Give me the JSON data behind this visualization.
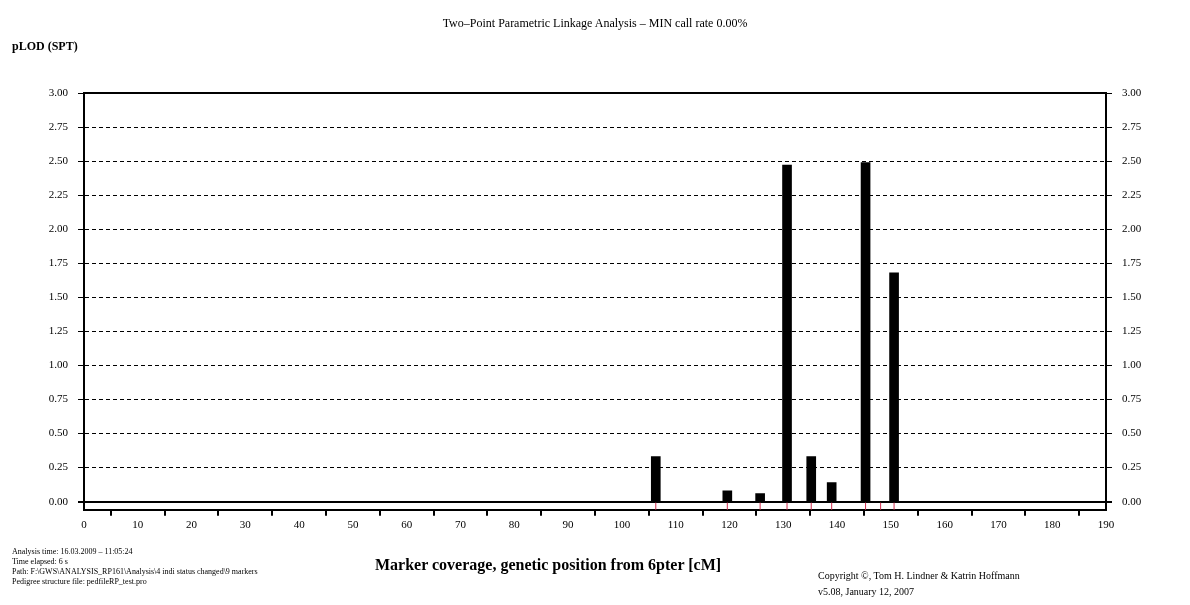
{
  "chart_data": {
    "type": "bar",
    "title": "Two–Point Parametric Linkage Analysis – MIN call rate 0.00%",
    "ylabel": "pLOD (SPT)",
    "xlabel": "Marker coverage, genetic position from 6pter [cM]",
    "x": [
      106.3,
      119.6,
      125.7,
      130.7,
      135.2,
      139.0,
      145.3,
      148.1,
      150.6
    ],
    "series": [
      {
        "color": "#000000",
        "values": [
          0.33,
          0.08,
          0.06,
          2.47,
          0.33,
          0.14,
          2.49,
          0,
          1.68
        ]
      }
    ],
    "xlim": [
      0,
      190
    ],
    "xticks": [
      0,
      10,
      20,
      30,
      40,
      50,
      60,
      70,
      80,
      90,
      100,
      110,
      120,
      130,
      140,
      150,
      160,
      170,
      180,
      190
    ],
    "ylim": [
      -0.06,
      3
    ],
    "yticks": [
      {
        "value": 0,
        "label": "0.00"
      },
      {
        "value": 0.25,
        "label": "0.25"
      },
      {
        "value": 0.5,
        "label": "0.50"
      },
      {
        "value": 0.75,
        "label": "0.75"
      },
      {
        "value": 1,
        "label": "1.00"
      },
      {
        "value": 1.25,
        "label": "1.25"
      },
      {
        "value": 1.5,
        "label": "1.50"
      },
      {
        "value": 1.75,
        "label": "1.75"
      },
      {
        "value": 2,
        "label": "2.00"
      },
      {
        "value": 2.25,
        "label": "2.25"
      },
      {
        "value": 2.5,
        "label": "2.50"
      },
      {
        "value": 2.75,
        "label": "2.75"
      },
      {
        "value": 3,
        "label": "3.00"
      }
    ],
    "y2lim": [
      -0.06,
      3
    ],
    "y2ticks": [
      {
        "value": 0,
        "label": "0.00"
      },
      {
        "value": 0.25,
        "label": "0.25"
      },
      {
        "value": 0.5,
        "label": "0.50"
      },
      {
        "value": 0.75,
        "label": "0.75"
      },
      {
        "value": 1,
        "label": "1.00"
      },
      {
        "value": 1.25,
        "label": "1.25"
      },
      {
        "value": 1.5,
        "label": "1.50"
      },
      {
        "value": 1.75,
        "label": "1.75"
      },
      {
        "value": 2,
        "label": "2.00"
      },
      {
        "value": 2.25,
        "label": "2.25"
      },
      {
        "value": 2.5,
        "label": "2.50"
      },
      {
        "value": 2.75,
        "label": "2.75"
      },
      {
        "value": 3,
        "label": "3.00"
      }
    ],
    "grid": "y",
    "legend": false,
    "annotations": [
      "Analysis time: 16.03.2009 – 11:05:24",
      "Time elapsed: 6 s",
      "Path: F:\\GWS\\ANALYSIS_RP161\\Analysis\\4 indi status changed\\9 markers",
      "Pedigree structure file: pedfileRP_test.pro",
      "Copyright ©, Tom H. Lindner & Katrin Hoffmann",
      "v5.08, January 12, 2007"
    ]
  }
}
